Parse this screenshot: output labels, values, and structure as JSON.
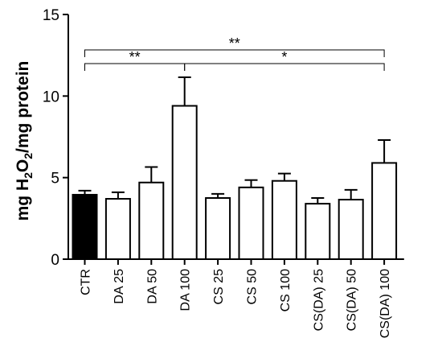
{
  "chart_data": {
    "type": "bar",
    "title": "",
    "xlabel": "",
    "ylabel": {
      "prefix": "mg H",
      "sub1": "2",
      "mid": "O",
      "sub2": "2",
      "suffix": "/mg protein"
    },
    "ylim": [
      0,
      15
    ],
    "yticks": [
      "0",
      "5",
      "10",
      "15"
    ],
    "categories": [
      "CTR",
      "DA 25",
      "DA 50",
      "DA 100",
      "CS 25",
      "CS 50",
      "CS 100",
      "CS(DA) 25",
      "CS(DA) 50",
      "CS(DA) 100"
    ],
    "values": [
      3.95,
      3.7,
      4.7,
      9.4,
      3.75,
      4.4,
      4.8,
      3.4,
      3.65,
      5.9
    ],
    "error": [
      0.25,
      0.4,
      0.95,
      1.75,
      0.25,
      0.45,
      0.45,
      0.35,
      0.6,
      1.4
    ],
    "bar_fill": [
      "#000000",
      "#ffffff",
      "#ffffff",
      "#ffffff",
      "#ffffff",
      "#ffffff",
      "#ffffff",
      "#ffffff",
      "#ffffff",
      "#ffffff"
    ],
    "significance": [
      {
        "from": "CTR",
        "to": "CS(DA) 100",
        "label": "**"
      },
      {
        "from": "CTR",
        "to": "DA 100",
        "label": "**"
      },
      {
        "from": "DA 100",
        "to": "CS(DA) 100",
        "label": "*"
      }
    ],
    "grid": false,
    "legend": "none"
  }
}
